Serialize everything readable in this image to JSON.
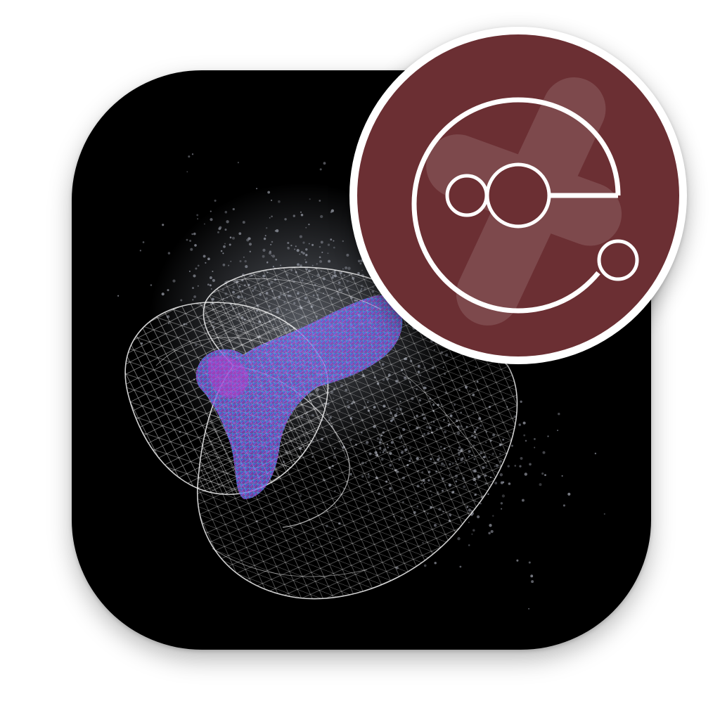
{
  "icon": {
    "name": "app-icon",
    "tile_color": "#000000",
    "wireframe_color": "#e6e6e6",
    "point_cloud_color": "#8c8f99",
    "density_colors": [
      "#3a6cf0",
      "#6a5cf0",
      "#c040d0",
      "#40d0e0"
    ]
  },
  "badge": {
    "name": "logo-badge",
    "ring_color": "#ffffff",
    "fill_color": "#6b2f33",
    "glyph_color": "#ffffff",
    "glyph": "e-logo-with-nodes-icon"
  }
}
